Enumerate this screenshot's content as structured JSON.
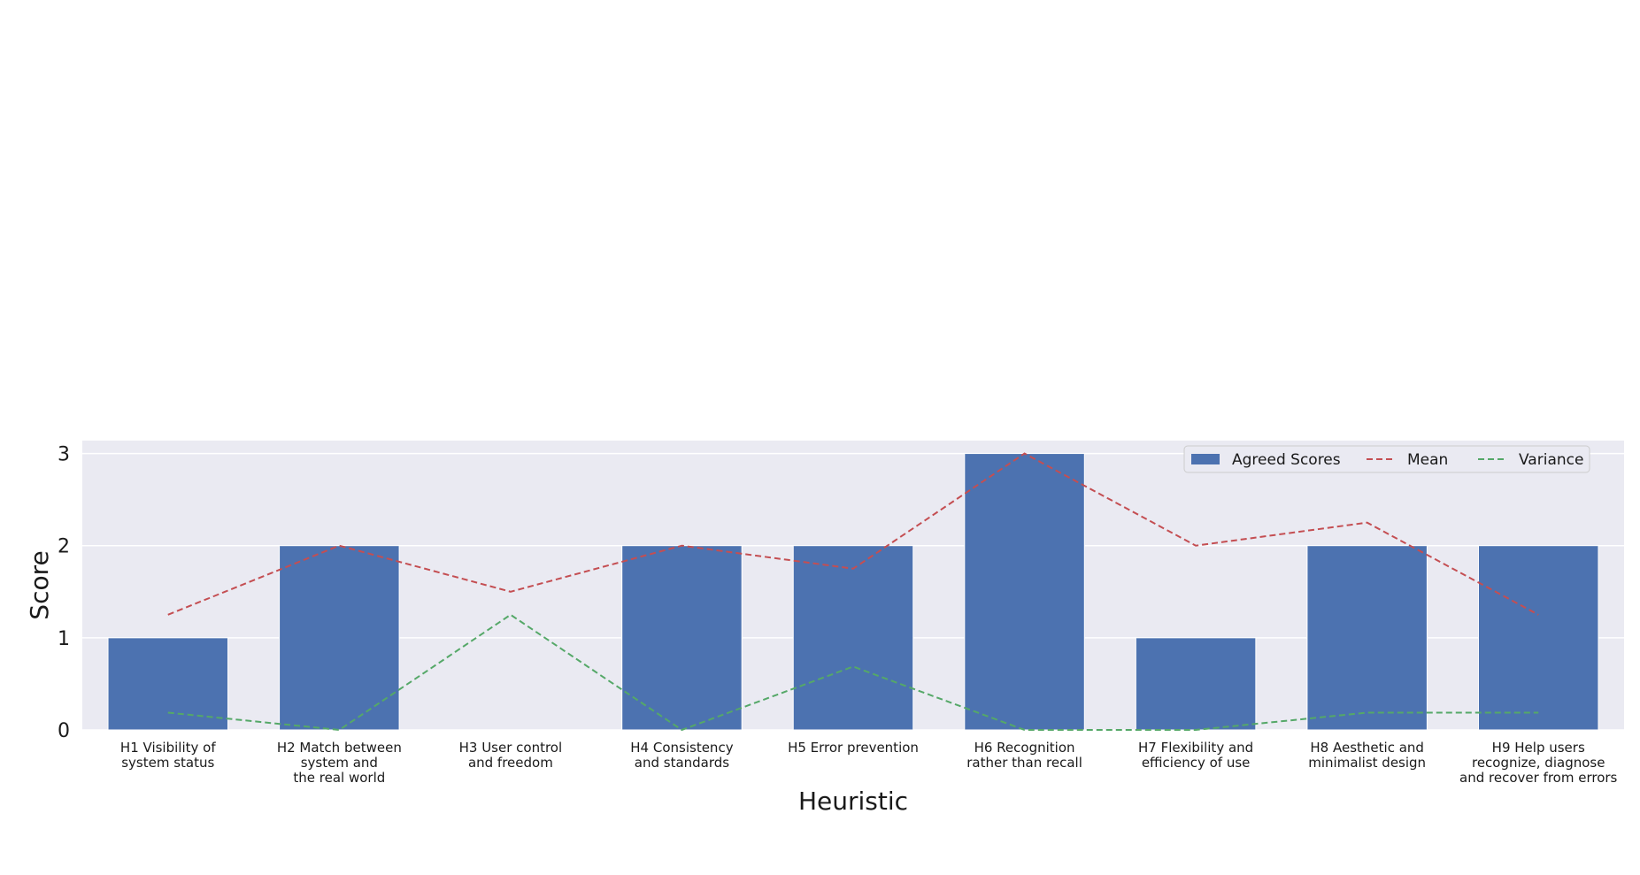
{
  "chart_data": {
    "type": "bar",
    "categories": [
      "H1 Visibility of\nsystem status",
      "H2 Match between\nsystem and\nthe real world",
      "H3 User control\nand freedom",
      "H4 Consistency\nand standards",
      "H5 Error prevention",
      "H6 Recognition\nrather than recall",
      "H7 Flexibility and\nefficiency of use",
      "H8 Aesthetic and\nminimalist design",
      "H9 Help users\nrecognize, diagnose\nand recover from errors"
    ],
    "series": [
      {
        "name": "Agreed Scores",
        "kind": "bar",
        "color": "#4c72b0",
        "values": [
          1,
          2,
          0,
          2,
          2,
          3,
          1,
          2,
          2
        ]
      },
      {
        "name": "Mean",
        "kind": "line",
        "style": "dashed",
        "color": "#c44e52",
        "values": [
          1.25,
          2.0,
          1.5,
          2.0,
          1.75,
          3.0,
          2.0,
          2.25,
          1.25
        ]
      },
      {
        "name": "Variance",
        "kind": "line",
        "style": "dashed",
        "color": "#55a868",
        "values": [
          0.1875,
          0.0,
          1.25,
          0.0,
          0.6875,
          0.0,
          0.0,
          0.1875,
          0.1875
        ]
      }
    ],
    "xlabel": "Heuristic",
    "ylabel": "Score",
    "ylim": [
      0,
      3.14
    ],
    "yticks": [
      0,
      1,
      2,
      3
    ],
    "grid": true,
    "legend_placement": "top-right"
  }
}
